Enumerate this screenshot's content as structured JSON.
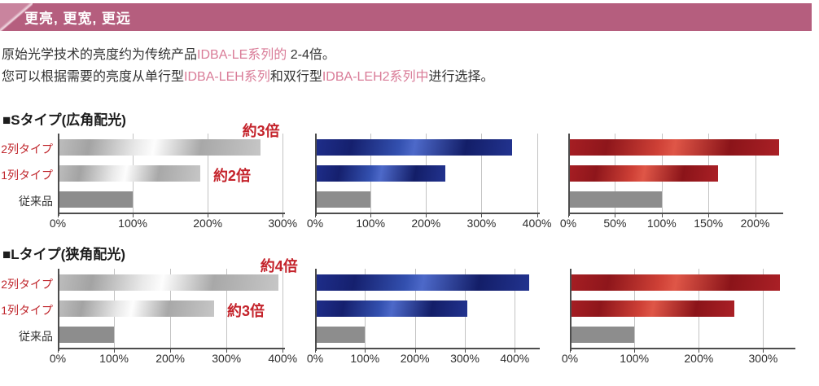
{
  "banner": {
    "title": "更亮, 更宽, 更远",
    "bg_color": "#b55e7e",
    "corner_color": "#c9849e",
    "text_color": "#ffffff"
  },
  "intro": {
    "line1": [
      {
        "text": "原始光学技术的亮度约为传统产品",
        "style": "default"
      },
      {
        "text": "IDBA-LE系列的",
        "style": "pink"
      },
      {
        "text": " 2-4倍。",
        "style": "default"
      }
    ],
    "line2": [
      {
        "text": "您可以根据需要的亮度从单行型",
        "style": "default"
      },
      {
        "text": "IDBA-LEH系列",
        "style": "pink"
      },
      {
        "text": "和双行型",
        "style": "default"
      },
      {
        "text": "IDBA-LEH2系列中",
        "style": "pink"
      },
      {
        "text": "进行选择。",
        "style": "default"
      }
    ],
    "pink_color": "#d97b97",
    "text_color": "#333333"
  },
  "sections": [
    {
      "header": "■Sタイプ(広角配光)"
    },
    {
      "header": "■Lタイプ(狭角配光)"
    }
  ],
  "chart_data": [
    {
      "type": "bar",
      "orientation": "horizontal",
      "section": "Sタイプ(広角配光)",
      "categories": [
        "2列タイプ",
        "1列タイプ",
        "従来品"
      ],
      "category_colors": [
        "#c0272d",
        "#c0272d",
        "#333333"
      ],
      "show_category_labels": true,
      "values": [
        270,
        190,
        100
      ],
      "row_styles": [
        "silver",
        "silver",
        "gray"
      ],
      "xmax": 303,
      "tick_values": [
        0,
        100,
        200,
        300
      ],
      "tick_labels": [
        "0%",
        "100%",
        "200%",
        "300%"
      ],
      "annotations": [
        {
          "text": "約3倍",
          "row": 0,
          "placement": "above-end"
        },
        {
          "text": "約2倍",
          "row": 1,
          "placement": "right-of-end"
        }
      ]
    },
    {
      "type": "bar",
      "orientation": "horizontal",
      "section": "Sタイプ(広角配光)",
      "categories": [
        "2列タイプ",
        "1列タイプ",
        "従来品"
      ],
      "show_category_labels": false,
      "values": [
        355,
        235,
        100
      ],
      "row_styles": [
        "blue",
        "blue",
        "gray"
      ],
      "xmax": 405,
      "tick_values": [
        0,
        100,
        200,
        300,
        400
      ],
      "tick_labels": [
        "0%",
        "100%",
        "200%",
        "300%",
        "400%"
      ],
      "annotations": []
    },
    {
      "type": "bar",
      "orientation": "horizontal",
      "section": "Sタイプ(広角配光)",
      "categories": [
        "2列タイプ",
        "1列タイプ",
        "従来品"
      ],
      "show_category_labels": false,
      "values": [
        226,
        160,
        100
      ],
      "row_styles": [
        "red",
        "red",
        "gray"
      ],
      "xmax": 230,
      "tick_values": [
        0,
        50,
        100,
        150,
        200
      ],
      "tick_labels": [
        "0%",
        "50%",
        "100%",
        "150%",
        "200%"
      ],
      "annotations": []
    },
    {
      "type": "bar",
      "orientation": "horizontal",
      "section": "Lタイプ(狭角配光)",
      "categories": [
        "2列タイプ",
        "1列タイプ",
        "従来品"
      ],
      "category_colors": [
        "#c0272d",
        "#c0272d",
        "#333333"
      ],
      "show_category_labels": true,
      "values": [
        392,
        278,
        100
      ],
      "row_styles": [
        "silver",
        "silver",
        "gray"
      ],
      "xmax": 404,
      "tick_values": [
        0,
        100,
        200,
        300,
        400
      ],
      "tick_labels": [
        "0%",
        "100%",
        "200%",
        "300%",
        "400%"
      ],
      "annotations": [
        {
          "text": "約4倍",
          "row": 0,
          "placement": "above-end"
        },
        {
          "text": "約3倍",
          "row": 1,
          "placement": "right-of-end"
        }
      ]
    },
    {
      "type": "bar",
      "orientation": "horizontal",
      "section": "Lタイプ(狭角配光)",
      "categories": [
        "2列タイプ",
        "1列タイプ",
        "従来品"
      ],
      "show_category_labels": false,
      "values": [
        428,
        305,
        100
      ],
      "row_styles": [
        "blue",
        "blue",
        "gray"
      ],
      "xmax": 450,
      "tick_values": [
        0,
        100,
        200,
        300,
        400
      ],
      "tick_labels": [
        "0%",
        "100%",
        "200%",
        "300%",
        "400%"
      ],
      "annotations": []
    },
    {
      "type": "bar",
      "orientation": "horizontal",
      "section": "Lタイプ(狭角配光)",
      "categories": [
        "2列タイプ",
        "1列タイプ",
        "従来品"
      ],
      "show_category_labels": false,
      "values": [
        326,
        255,
        100
      ],
      "row_styles": [
        "red",
        "red",
        "gray"
      ],
      "xmax": 350,
      "tick_values": [
        0,
        100,
        200,
        300
      ],
      "tick_labels": [
        "0%",
        "100%",
        "200%",
        "300%"
      ],
      "annotations": []
    }
  ],
  "colors": {
    "banner_bg": "#b55e7e",
    "banner_corner": "#c9849e",
    "pink_text": "#d97b97",
    "red_category_label": "#c0272d",
    "annotation_red": "#c4232b",
    "axis": "#4d4d4d",
    "gridline": "#c3c3c3",
    "bar_blue": "#1b2a85",
    "bar_red": "#a31e23",
    "bar_silver": "#b5b5b5",
    "bar_gray": "#8d8d8d"
  }
}
